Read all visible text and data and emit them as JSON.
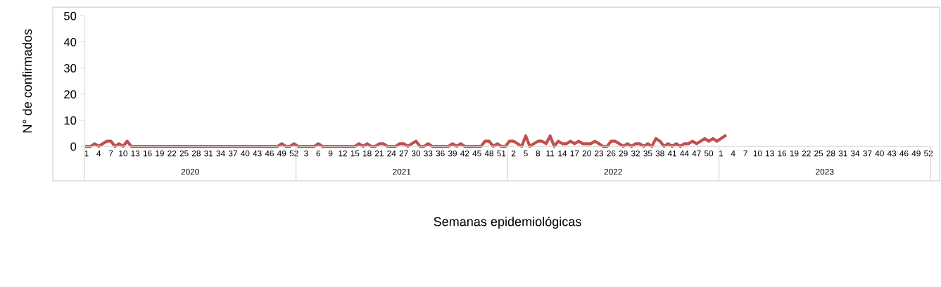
{
  "chart_data": {
    "type": "line",
    "xlabel": "Semanas epidemiológicas",
    "ylabel": "N° de confirmados",
    "categories": [
      "1",
      null,
      null,
      "4",
      null,
      null,
      "7",
      null,
      null,
      "10",
      null,
      null,
      "13",
      null,
      null,
      "16",
      null,
      null,
      "19",
      null,
      null,
      "22",
      null,
      null,
      "25",
      null,
      null,
      "28",
      null,
      null,
      "31",
      null,
      null,
      "34",
      null,
      null,
      "37",
      null,
      null,
      "40",
      null,
      null,
      "43",
      null,
      null,
      "46",
      null,
      null,
      "49",
      null,
      null,
      "52",
      null,
      null,
      "3",
      null,
      null,
      "6",
      null,
      null,
      "9",
      null,
      null,
      "12",
      null,
      null,
      "15",
      null,
      null,
      "18",
      null,
      null,
      "21",
      null,
      null,
      "24",
      null,
      null,
      "27",
      null,
      null,
      "30",
      null,
      null,
      "33",
      null,
      null,
      "36",
      null,
      null,
      "39",
      null,
      null,
      "42",
      null,
      null,
      "45",
      null,
      null,
      "48",
      null,
      null,
      "51",
      null,
      null,
      "2",
      null,
      null,
      "5",
      null,
      null,
      "8",
      null,
      null,
      "11",
      null,
      null,
      "14",
      null,
      null,
      "17",
      null,
      null,
      "20",
      null,
      null,
      "23",
      null,
      null,
      "26",
      null,
      null,
      "29",
      null,
      null,
      "32",
      null,
      null,
      "35",
      null,
      null,
      "38",
      null,
      null,
      "41",
      null,
      null,
      "44",
      null,
      null,
      "47",
      null,
      null,
      "50",
      null,
      null,
      "1",
      null,
      null,
      "4",
      null,
      null,
      "7",
      null,
      null,
      "10",
      null,
      null,
      "13",
      null,
      null,
      "16",
      null,
      null,
      "19",
      null,
      null,
      "22",
      null,
      null,
      "25",
      null,
      null,
      "28",
      null,
      null,
      "31",
      null,
      null,
      "34",
      null,
      null,
      "37",
      null,
      null,
      "40",
      null,
      null,
      "43",
      null,
      null,
      "46",
      null,
      null,
      "49",
      null,
      null,
      "52"
    ],
    "series": [
      {
        "color": "#c0504d",
        "values": [
          0,
          0,
          1,
          0,
          1,
          2,
          2,
          0,
          1,
          0,
          2,
          0,
          0,
          0,
          0,
          0,
          0,
          0,
          0,
          0,
          0,
          0,
          0,
          0,
          0,
          0,
          0,
          0,
          0,
          0,
          0,
          0,
          0,
          0,
          0,
          0,
          0,
          0,
          0,
          0,
          0,
          0,
          0,
          0,
          0,
          0,
          0,
          0,
          1,
          0,
          0,
          1,
          0,
          0,
          0,
          0,
          0,
          1,
          0,
          0,
          0,
          0,
          0,
          0,
          0,
          0,
          0,
          1,
          0,
          1,
          0,
          0,
          1,
          1,
          0,
          0,
          0,
          1,
          1,
          0,
          1,
          2,
          0,
          0,
          1,
          0,
          0,
          0,
          0,
          0,
          1,
          0,
          1,
          0,
          0,
          0,
          0,
          0,
          2,
          2,
          0,
          1,
          0,
          0,
          2,
          2,
          1,
          0,
          4,
          0,
          1,
          2,
          2,
          1,
          4,
          0,
          2,
          1,
          1,
          2,
          1,
          2,
          1,
          1,
          1,
          2,
          1,
          0,
          0,
          2,
          2,
          1,
          0,
          1,
          0,
          1,
          1,
          0,
          1,
          0,
          3,
          2,
          0,
          1,
          0,
          1,
          0,
          1,
          1,
          2,
          1,
          2,
          3,
          2,
          3,
          2,
          3,
          4,
          null,
          null,
          null,
          null,
          null,
          null,
          null,
          null,
          null,
          null,
          null,
          null,
          null,
          null,
          null,
          null,
          null,
          null,
          null,
          null,
          null,
          null,
          null,
          null,
          null,
          null,
          null,
          null,
          null,
          null,
          null,
          null,
          null,
          null,
          null,
          null,
          null,
          null,
          null,
          null,
          null,
          null,
          null,
          null,
          null,
          null,
          null,
          null,
          null,
          null
        ]
      }
    ],
    "ylim": [
      0,
      50
    ],
    "yticks": [
      0,
      10,
      20,
      30,
      40,
      50
    ],
    "annotations": [
      "2020",
      "2021",
      "2022",
      "2023"
    ],
    "grid": false,
    "legend": false,
    "marker": "none",
    "line_style": "solid"
  }
}
